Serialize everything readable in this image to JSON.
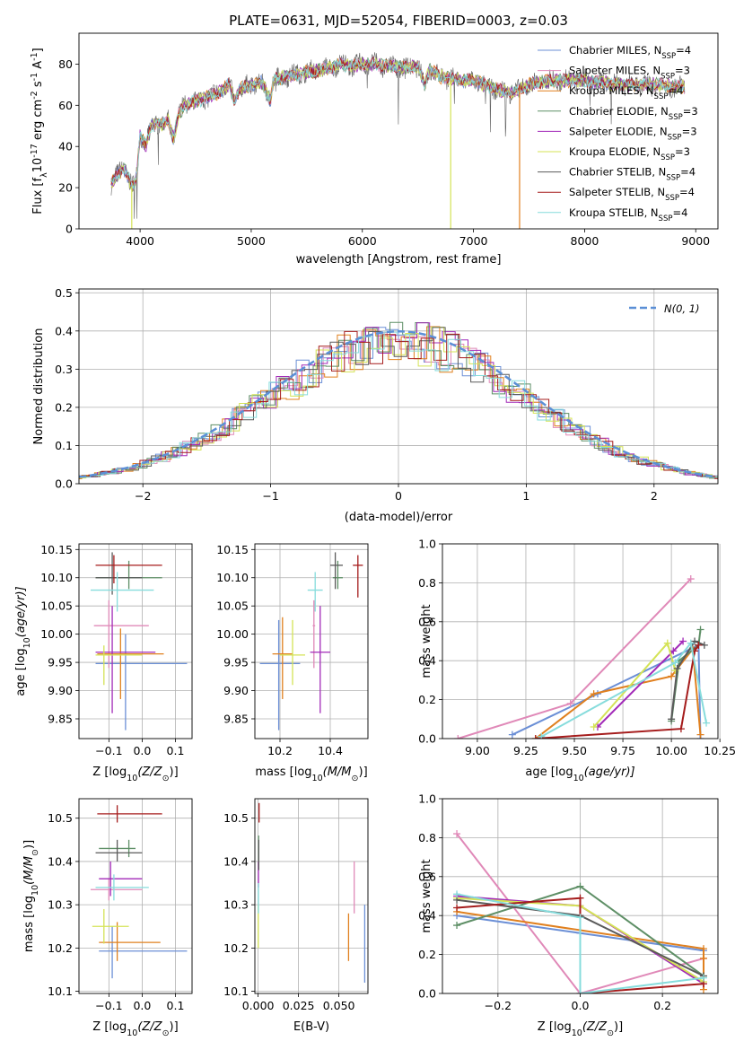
{
  "title": "PLATE=0631, MJD=52054, FIBERID=0003, z=0.03",
  "series": [
    {
      "name": "Chabrier MILES, N",
      "sub": "SSP",
      "tail": "=4",
      "color": "#6b8fd6"
    },
    {
      "name": "Salpeter MILES, N",
      "sub": "SSP",
      "tail": "=3",
      "color": "#e089b8"
    },
    {
      "name": "Kroupa MILES, N",
      "sub": "SSP",
      "tail": "=4",
      "color": "#e0801f"
    },
    {
      "name": "Chabrier ELODIE, N",
      "sub": "SSP",
      "tail": "=3",
      "color": "#5e8f66"
    },
    {
      "name": "Salpeter ELODIE, N",
      "sub": "SSP",
      "tail": "=3",
      "color": "#a22ab8"
    },
    {
      "name": "Kroupa ELODIE, N",
      "sub": "SSP",
      "tail": "=3",
      "color": "#d4e356"
    },
    {
      "name": "Chabrier STELIB, N",
      "sub": "SSP",
      "tail": "=4",
      "color": "#5a5a5a"
    },
    {
      "name": "Salpeter STELIB, N",
      "sub": "SSP",
      "tail": "=4",
      "color": "#a51c1c"
    },
    {
      "name": "Kroupa STELIB, N",
      "sub": "SSP",
      "tail": "=4",
      "color": "#86dcdc"
    }
  ],
  "chart_data": [
    {
      "id": "spectrum",
      "type": "line",
      "xlabel": "wavelength [Angstrom, rest frame]",
      "ylabel_pre": "Flux [f",
      "ylabel_sub": "λ",
      "ylabel_mid": "10",
      "ylabel_sup1": "-17",
      "ylabel_mid2": " erg cm",
      "ylabel_sup2": "-2",
      "ylabel_mid3": " s",
      "ylabel_sup3": "-1",
      "ylabel_mid4": " A",
      "ylabel_sup4": "-1",
      "ylabel_end": "]",
      "xlim": [
        3450,
        9200
      ],
      "ylim": [
        0,
        95
      ],
      "xticks": [
        4000,
        5000,
        6000,
        7000,
        8000,
        9000
      ],
      "yticks": [
        0,
        20,
        40,
        60,
        80
      ],
      "envelope": {
        "x": [
          3740,
          3780,
          3850,
          3900,
          3930,
          3970,
          4000,
          4050,
          4100,
          4150,
          4200,
          4250,
          4300,
          4350,
          4400,
          4500,
          4600,
          4700,
          4800,
          4850,
          4900,
          5000,
          5100,
          5175,
          5200,
          5300,
          5400,
          5500,
          5600,
          5700,
          5800,
          5900,
          6000,
          6100,
          6200,
          6300,
          6400,
          6500,
          6560,
          6600,
          6700,
          6800,
          6900,
          7000,
          7100,
          7200,
          7300,
          7400,
          7500,
          7600,
          7700,
          7800,
          7900,
          8000,
          8100,
          8200,
          8300,
          8400,
          8500,
          8600,
          8700,
          8800,
          8900
        ],
        "y": [
          22,
          25,
          30,
          24,
          20,
          26,
          46,
          40,
          50,
          52,
          50,
          53,
          44,
          56,
          60,
          62,
          64,
          66,
          70,
          62,
          68,
          70,
          71,
          62,
          72,
          74,
          75,
          76,
          77,
          78,
          80,
          79,
          80,
          80,
          79,
          79,
          78,
          79,
          70,
          77,
          74,
          73,
          72,
          72,
          70,
          68,
          66,
          67,
          70,
          71,
          72,
          72,
          72,
          72,
          71,
          71,
          70,
          70,
          70,
          70,
          70,
          69,
          69
        ]
      },
      "dropouts": [
        {
          "x": 3925,
          "series": 5,
          "y": 0
        },
        {
          "x": 6795,
          "series": 5,
          "y": 0
        },
        {
          "x": 7415,
          "series": 2,
          "y": 0
        }
      ]
    },
    {
      "id": "residuals",
      "type": "histogram",
      "xlabel": "(data-model)/error",
      "ylabel": "Normed distribution",
      "xlim": [
        -2.5,
        2.5
      ],
      "ylim": [
        0,
        0.51
      ],
      "xticks": [
        -2,
        -1,
        0,
        1,
        2
      ],
      "yticks": [
        0.0,
        0.1,
        0.2,
        0.3,
        0.4,
        0.5
      ],
      "bin_width": 0.1,
      "reference": {
        "label": "N(0, 1)",
        "color": "#5b8fd6",
        "mean": 0,
        "sigma": 1
      }
    },
    {
      "id": "age_vs_Z",
      "type": "errorbar",
      "xlabel_pre": "Z [log",
      "xlabel_sub": "10",
      "xlabel_post": "(Z/Z",
      "xlabel_sun": "⊙",
      "xlabel_end": ")]",
      "ylabel_pre": "age  [log",
      "ylabel_sub": "10",
      "ylabel_post": "(age/yr)]",
      "xlim": [
        -0.19,
        0.15
      ],
      "ylim": [
        9.815,
        10.16
      ],
      "xticks": [
        -0.1,
        0.0,
        0.1
      ],
      "yticks": [
        9.85,
        9.9,
        9.95,
        10.0,
        10.05,
        10.1,
        10.15
      ],
      "points": [
        {
          "s": 0,
          "x": -0.05,
          "y": 9.948,
          "xlo": -0.14,
          "xhi": 0.135,
          "ylo": 9.83,
          "yhi": 10.0
        },
        {
          "s": 1,
          "x": -0.1,
          "y": 10.015,
          "xlo": -0.145,
          "xhi": 0.02,
          "ylo": 9.94,
          "yhi": 10.06
        },
        {
          "s": 2,
          "x": -0.065,
          "y": 9.965,
          "xlo": -0.135,
          "xhi": 0.065,
          "ylo": 9.885,
          "yhi": 10.01
        },
        {
          "s": 3,
          "x": -0.04,
          "y": 10.1,
          "xlo": -0.14,
          "xhi": 0.06,
          "ylo": 10.08,
          "yhi": 10.13
        },
        {
          "s": 4,
          "x": -0.09,
          "y": 9.968,
          "xlo": -0.14,
          "xhi": 0.04,
          "ylo": 9.86,
          "yhi": 10.05
        },
        {
          "s": 5,
          "x": -0.115,
          "y": 9.963,
          "xlo": -0.14,
          "xhi": 0.0,
          "ylo": 9.91,
          "yhi": 9.98
        },
        {
          "s": 6,
          "x": -0.09,
          "y": 10.1,
          "xlo": -0.14,
          "xhi": 0.0,
          "ylo": 10.07,
          "yhi": 10.145
        },
        {
          "s": 7,
          "x": -0.085,
          "y": 10.122,
          "xlo": -0.14,
          "xhi": 0.06,
          "ylo": 10.09,
          "yhi": 10.14
        },
        {
          "s": 8,
          "x": -0.075,
          "y": 10.078,
          "xlo": -0.155,
          "xhi": 0.035,
          "ylo": 10.04,
          "yhi": 10.11
        }
      ]
    },
    {
      "id": "age_vs_mass",
      "type": "errorbar",
      "xlabel_pre": "mass [log",
      "xlabel_sub": "10",
      "xlabel_post": "(M/M",
      "xlabel_sun": "⊙",
      "xlabel_end": ")]",
      "xlim": [
        10.1,
        10.55
      ],
      "ylim": [
        9.815,
        10.16
      ],
      "xticks": [
        10.2,
        10.4
      ],
      "yticks": [
        9.85,
        9.9,
        9.95,
        10.0,
        10.05,
        10.1,
        10.15
      ],
      "points": [
        {
          "s": 0,
          "x": 10.195,
          "y": 9.948,
          "xlo": 10.12,
          "xhi": 10.28,
          "ylo": 9.83,
          "yhi": 10.025
        },
        {
          "s": 1,
          "x": 10.335,
          "y": 10.015,
          "xlo": 10.33,
          "xhi": 10.34,
          "ylo": 9.94,
          "yhi": 10.06
        },
        {
          "s": 2,
          "x": 10.21,
          "y": 9.965,
          "xlo": 10.17,
          "xhi": 10.25,
          "ylo": 9.885,
          "yhi": 10.03
        },
        {
          "s": 3,
          "x": 10.43,
          "y": 10.1,
          "xlo": 10.41,
          "xhi": 10.45,
          "ylo": 10.08,
          "yhi": 10.13
        },
        {
          "s": 4,
          "x": 10.36,
          "y": 9.968,
          "xlo": 10.32,
          "xhi": 10.4,
          "ylo": 9.86,
          "yhi": 10.05
        },
        {
          "s": 5,
          "x": 10.25,
          "y": 9.963,
          "xlo": 10.2,
          "xhi": 10.3,
          "ylo": 9.91,
          "yhi": 10.025
        },
        {
          "s": 6,
          "x": 10.42,
          "y": 10.122,
          "xlo": 10.4,
          "xhi": 10.45,
          "ylo": 10.08,
          "yhi": 10.145
        },
        {
          "s": 7,
          "x": 10.51,
          "y": 10.122,
          "xlo": 10.49,
          "xhi": 10.53,
          "ylo": 10.065,
          "yhi": 10.14
        },
        {
          "s": 8,
          "x": 10.34,
          "y": 10.078,
          "xlo": 10.31,
          "xhi": 10.37,
          "ylo": 10.04,
          "yhi": 10.11
        }
      ]
    },
    {
      "id": "weight_vs_age",
      "type": "line",
      "xlabel_pre": "age  [log",
      "xlabel_sub": "10",
      "xlabel_post": "(age/yr)]",
      "ylabel": "mass weight",
      "xlim": [
        8.82,
        10.24
      ],
      "ylim": [
        0,
        1.0
      ],
      "xticks": [
        9.0,
        9.25,
        9.5,
        9.75,
        10.0,
        10.25
      ],
      "yticks": [
        0.0,
        0.2,
        0.4,
        0.6,
        0.8,
        1.0
      ],
      "lines": [
        {
          "s": 0,
          "x": [
            9.18,
            9.62,
            10.14,
            10.15
          ],
          "y": [
            0.02,
            0.23,
            0.48,
            0.0
          ]
        },
        {
          "s": 1,
          "x": [
            8.9,
            9.48,
            10.1
          ],
          "y": [
            0.0,
            0.18,
            0.82
          ]
        },
        {
          "s": 2,
          "x": [
            9.3,
            9.6,
            10.0,
            10.11,
            10.15
          ],
          "y": [
            0.0,
            0.23,
            0.32,
            0.46,
            0.02
          ]
        },
        {
          "s": 3,
          "x": [
            10.0,
            10.04,
            10.14,
            10.15
          ],
          "y": [
            0.09,
            0.4,
            0.48,
            0.56
          ]
        },
        {
          "s": 4,
          "x": [
            9.62,
            10.01,
            10.06
          ],
          "y": [
            0.06,
            0.45,
            0.5
          ]
        },
        {
          "s": 5,
          "x": [
            9.6,
            9.98,
            10.02
          ],
          "y": [
            0.06,
            0.49,
            0.35
          ]
        },
        {
          "s": 6,
          "x": [
            10.0,
            10.03,
            10.12,
            10.17
          ],
          "y": [
            0.1,
            0.36,
            0.5,
            0.48
          ]
        },
        {
          "s": 7,
          "x": [
            9.3,
            10.05,
            10.12,
            10.14
          ],
          "y": [
            0.0,
            0.05,
            0.45,
            0.48
          ]
        },
        {
          "s": 8,
          "x": [
            9.33,
            10.02,
            10.1,
            10.18
          ],
          "y": [
            0.01,
            0.39,
            0.49,
            0.08
          ]
        }
      ]
    },
    {
      "id": "mass_vs_Z",
      "type": "errorbar",
      "xlabel_pre": "Z [log",
      "xlabel_sub": "10",
      "xlabel_post": "(Z/Z",
      "xlabel_sun": "⊙",
      "xlabel_end": ")]",
      "ylabel_pre": "mass [log",
      "ylabel_sub": "10",
      "ylabel_post": "(M/M",
      "ylabel_sun": "⊙",
      "ylabel_end": ")]",
      "xlim": [
        -0.19,
        0.15
      ],
      "ylim": [
        10.095,
        10.545
      ],
      "xticks": [
        -0.1,
        0.0,
        0.1
      ],
      "yticks": [
        10.1,
        10.2,
        10.3,
        10.4,
        10.5
      ],
      "points": [
        {
          "s": 0,
          "x": -0.09,
          "y": 10.193,
          "xlo": -0.13,
          "xhi": 0.135,
          "ylo": 10.13,
          "yhi": 10.25
        },
        {
          "s": 1,
          "x": -0.1,
          "y": 10.335,
          "xlo": -0.155,
          "xhi": 0.0,
          "ylo": 10.31,
          "yhi": 10.36
        },
        {
          "s": 2,
          "x": -0.075,
          "y": 10.213,
          "xlo": -0.13,
          "xhi": 0.055,
          "ylo": 10.17,
          "yhi": 10.26
        },
        {
          "s": 3,
          "x": -0.04,
          "y": 10.43,
          "xlo": -0.13,
          "xhi": -0.02,
          "ylo": 10.41,
          "yhi": 10.45
        },
        {
          "s": 4,
          "x": -0.095,
          "y": 10.36,
          "xlo": -0.13,
          "xhi": 0.0,
          "ylo": 10.32,
          "yhi": 10.4
        },
        {
          "s": 5,
          "x": -0.115,
          "y": 10.25,
          "xlo": -0.15,
          "xhi": -0.04,
          "ylo": 10.21,
          "yhi": 10.29
        },
        {
          "s": 6,
          "x": -0.075,
          "y": 10.42,
          "xlo": -0.14,
          "xhi": 0.0,
          "ylo": 10.4,
          "yhi": 10.45
        },
        {
          "s": 7,
          "x": -0.075,
          "y": 10.51,
          "xlo": -0.135,
          "xhi": 0.06,
          "ylo": 10.49,
          "yhi": 10.53
        },
        {
          "s": 8,
          "x": -0.085,
          "y": 10.34,
          "xlo": -0.14,
          "xhi": 0.02,
          "ylo": 10.31,
          "yhi": 10.37
        }
      ]
    },
    {
      "id": "mass_vs_ebv",
      "type": "errorbar",
      "xlabel": "E(B-V)",
      "xlim": [
        -0.002,
        0.068
      ],
      "ylim": [
        10.095,
        10.545
      ],
      "xticks": [
        0.0,
        0.025,
        0.05
      ],
      "yticks": [
        10.1,
        10.2,
        10.3,
        10.4,
        10.5
      ],
      "points": [
        {
          "s": 0,
          "x": 0.066,
          "y": 10.21,
          "xlo": 0.066,
          "xhi": 0.066,
          "ylo": 10.12,
          "yhi": 10.3
        },
        {
          "s": 1,
          "x": 0.0595,
          "y": 10.33,
          "xlo": 0.0595,
          "xhi": 0.0595,
          "ylo": 10.28,
          "yhi": 10.4
        },
        {
          "s": 2,
          "x": 0.056,
          "y": 10.23,
          "xlo": 0.056,
          "xhi": 0.056,
          "ylo": 10.17,
          "yhi": 10.28
        },
        {
          "s": 3,
          "x": 0.0003,
          "y": 10.43,
          "xlo": 0.0003,
          "xhi": 0.0003,
          "ylo": 10.39,
          "yhi": 10.46
        },
        {
          "s": 4,
          "x": 0.0002,
          "y": 10.36,
          "xlo": 0.0002,
          "xhi": 0.0002,
          "ylo": 10.34,
          "yhi": 10.4
        },
        {
          "s": 5,
          "x": 0.0001,
          "y": 10.25,
          "xlo": 0.0001,
          "xhi": 0.0001,
          "ylo": 10.2,
          "yhi": 10.3
        },
        {
          "s": 6,
          "x": 0.0004,
          "y": 10.42,
          "xlo": 0.0004,
          "xhi": 0.0004,
          "ylo": 10.38,
          "yhi": 10.45
        },
        {
          "s": 7,
          "x": 0.0006,
          "y": 10.51,
          "xlo": 0.0006,
          "xhi": 0.0006,
          "ylo": 10.49,
          "yhi": 10.535
        },
        {
          "s": 8,
          "x": 0.0002,
          "y": 10.31,
          "xlo": 0.0002,
          "xhi": 0.0002,
          "ylo": 10.28,
          "yhi": 10.35
        }
      ]
    },
    {
      "id": "weight_vs_Z",
      "type": "line",
      "xlabel_pre": "Z [log",
      "xlabel_sub": "10",
      "xlabel_post": "(Z/Z",
      "xlabel_sun": "⊙",
      "xlabel_end": ")]",
      "ylabel": "mass weight",
      "xlim": [
        -0.335,
        0.335
      ],
      "ylim": [
        0,
        1.0
      ],
      "xticks": [
        -0.2,
        0.0,
        0.2
      ],
      "yticks": [
        0.0,
        0.2,
        0.4,
        0.6,
        0.8,
        1.0
      ],
      "lines": [
        {
          "s": 0,
          "x": [
            -0.3,
            0.0,
            0.3
          ],
          "y": [
            0.4,
            0.31,
            0.22
          ]
        },
        {
          "s": 1,
          "x": [
            -0.3,
            0.0,
            0.3
          ],
          "y": [
            0.82,
            0.0,
            0.18
          ]
        },
        {
          "s": 2,
          "x": [
            -0.3,
            0.3,
            0.3,
            0.3
          ],
          "y": [
            0.42,
            0.23,
            0.02,
            0.18
          ]
        },
        {
          "s": 3,
          "x": [
            -0.3,
            0.0,
            0.3
          ],
          "y": [
            0.35,
            0.55,
            0.09
          ]
        },
        {
          "s": 4,
          "x": [
            -0.3,
            0.0,
            0.3
          ],
          "y": [
            0.5,
            0.45,
            0.05
          ]
        },
        {
          "s": 5,
          "x": [
            -0.3,
            0.0,
            0.3
          ],
          "y": [
            0.49,
            0.45,
            0.06
          ]
        },
        {
          "s": 6,
          "x": [
            -0.3,
            0.0,
            0.3
          ],
          "y": [
            0.48,
            0.4,
            0.09
          ]
        },
        {
          "s": 7,
          "x": [
            -0.3,
            0.0,
            0.0,
            0.3
          ],
          "y": [
            0.44,
            0.49,
            0.0,
            0.05
          ]
        },
        {
          "s": 8,
          "x": [
            -0.3,
            0.0,
            0.0,
            0.3
          ],
          "y": [
            0.51,
            0.39,
            0.0,
            0.08
          ]
        }
      ]
    }
  ]
}
